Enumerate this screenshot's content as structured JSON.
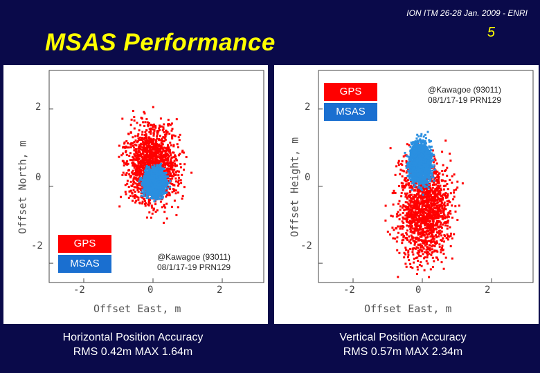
{
  "header": {
    "conference": "ION ITM 26-28 Jan. 2009 - ENRI",
    "page_number": "5"
  },
  "title": "MSAS Performance",
  "colors": {
    "background": "#0a0a4a",
    "title": "#ffff00",
    "gps": "#ff0000",
    "msas": "#2a8fe0"
  },
  "chart_data": [
    {
      "type": "scatter",
      "title": "",
      "xlabel": "Offset East, m",
      "ylabel": "Offset North, m",
      "xlim": [
        -3,
        3.2
      ],
      "ylim": [
        -2.5,
        3.0
      ],
      "xticks": [
        "-2",
        "0",
        "2"
      ],
      "yticks": [
        "2",
        "0",
        "-2"
      ],
      "legend": {
        "position": "bottom-left",
        "entries": [
          "GPS",
          "MSAS"
        ]
      },
      "annotation": {
        "line1": "@Kawagoe (93011)",
        "line2": "08/1/17-19  PRN129"
      },
      "series": [
        {
          "name": "GPS",
          "color": "#ff0000",
          "center": [
            0.0,
            0.55
          ],
          "spread": [
            0.75,
            1.0
          ],
          "rms": 0.95
        },
        {
          "name": "MSAS",
          "color": "#2a8fe0",
          "center": [
            0.05,
            0.1
          ],
          "spread": [
            0.3,
            0.35
          ],
          "rms": 0.42
        }
      ],
      "caption": {
        "line1": "Horizontal Position Accuracy",
        "line2": "RMS 0.42m   MAX 1.64m"
      }
    },
    {
      "type": "scatter",
      "title": "",
      "xlabel": "Offset East, m",
      "ylabel": "Offset Height, m",
      "xlim": [
        -3,
        3.2
      ],
      "ylim": [
        -2.5,
        3.0
      ],
      "xticks": [
        "-2",
        "0",
        "2"
      ],
      "yticks": [
        "2",
        "0",
        "-2"
      ],
      "legend": {
        "position": "top-right",
        "entries": [
          "GPS",
          "MSAS"
        ]
      },
      "annotation": {
        "line1": "@Kawagoe (93011)",
        "line2": "08/1/17-19  PRN129"
      },
      "series": [
        {
          "name": "GPS",
          "color": "#ff0000",
          "center": [
            0.05,
            -0.6
          ],
          "spread": [
            0.75,
            1.3
          ],
          "rms": 1.3
        },
        {
          "name": "MSAS",
          "color": "#2a8fe0",
          "center": [
            -0.05,
            0.6
          ],
          "spread": [
            0.3,
            0.55
          ],
          "rms": 0.57
        }
      ],
      "caption": {
        "line1": "Vertical Position Accuracy",
        "line2": "RMS 0.57m   MAX 2.34m"
      }
    }
  ]
}
